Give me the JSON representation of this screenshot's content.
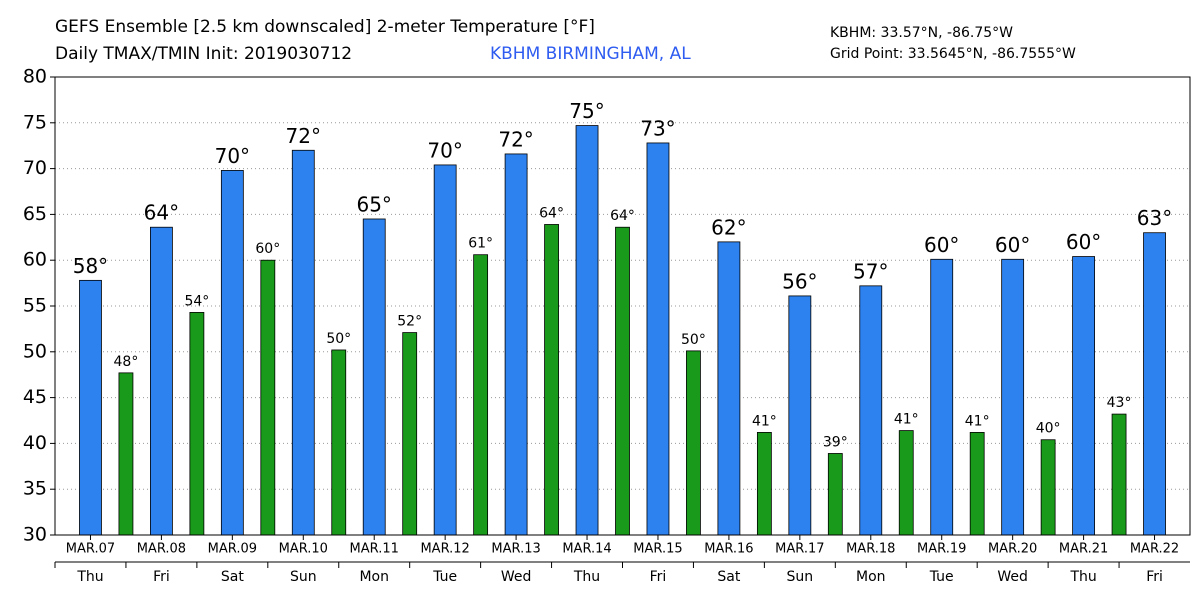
{
  "chart_data": {
    "type": "bar",
    "title": "GEFS Ensemble [2.5 km downscaled] 2-meter Temperature [°F]",
    "subtitle": "Daily TMAX/TMIN Init: 2019030712",
    "location": "KBHM BIRMINGHAM, AL",
    "station_coords": "KBHM: 33.57°N, -86.75°W",
    "grid_point": "Grid Point: 33.5645°N, -86.7555°W",
    "categories": [
      "MAR.07",
      "MAR.08",
      "MAR.09",
      "MAR.10",
      "MAR.11",
      "MAR.12",
      "MAR.13",
      "MAR.14",
      "MAR.15",
      "MAR.16",
      "MAR.17",
      "MAR.18",
      "MAR.19",
      "MAR.20",
      "MAR.21",
      "MAR.22"
    ],
    "weekdays": [
      "Thu",
      "Fri",
      "Sat",
      "Sun",
      "Mon",
      "Tue",
      "Wed",
      "Thu",
      "Fri",
      "Sat",
      "Sun",
      "Mon",
      "Tue",
      "Wed",
      "Thu",
      "Fri"
    ],
    "series": [
      {
        "color": "#2e82f0",
        "values": [
          57.8,
          63.6,
          69.8,
          72,
          64.5,
          70.4,
          71.6,
          74.7,
          72.8,
          62,
          56.1,
          57.2,
          60.1,
          60.1,
          60.4,
          63
        ],
        "value_labels": [
          "58°",
          "64°",
          "70°",
          "72°",
          "65°",
          "70°",
          "72°",
          "75°",
          "73°",
          "62°",
          "56°",
          "57°",
          "60°",
          "60°",
          "60°",
          "63°"
        ]
      },
      {
        "color": "#1a9a1a",
        "values": [
          47.7,
          54.3,
          60,
          50.2,
          52.1,
          60.6,
          63.9,
          63.6,
          50.1,
          41.2,
          38.9,
          41.4,
          41.2,
          40.4,
          43.2,
          null
        ],
        "value_labels": [
          "48°",
          "54°",
          "60°",
          "50°",
          "52°",
          "61°",
          "64°",
          "64°",
          "50°",
          "41°",
          "39°",
          "41°",
          "41°",
          "40°",
          "43°",
          null
        ]
      }
    ],
    "ylim": [
      30,
      80
    ],
    "yticks": [
      30,
      35,
      40,
      45,
      50,
      55,
      60,
      65,
      70,
      75,
      80
    ],
    "grid": true
  }
}
